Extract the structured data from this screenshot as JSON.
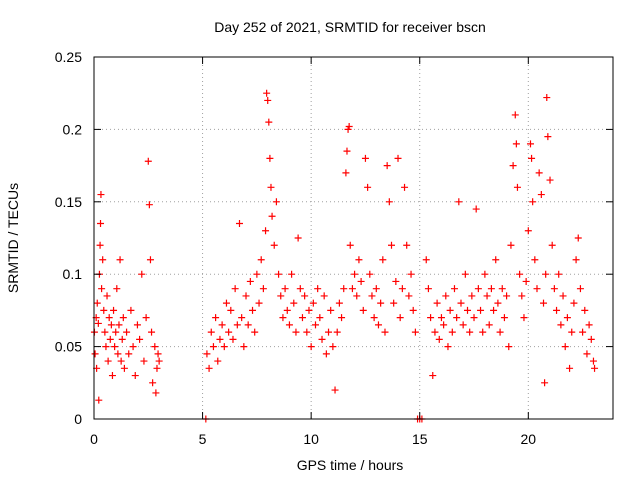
{
  "chart_data": {
    "type": "scatter",
    "title": "Day 252 of 2021, SRMTID for receiver bscn",
    "xlabel": "GPS time / hours",
    "ylabel": "SRMTID / TECUs",
    "xlim": [
      0,
      23.9
    ],
    "ylim": [
      0,
      0.25
    ],
    "xticks": [
      0,
      5,
      10,
      15,
      20
    ],
    "xtick_labels": [
      "0",
      "5",
      "10",
      "15",
      "20"
    ],
    "yticks": [
      0,
      0.05,
      0.1,
      0.15,
      0.2,
      0.25
    ],
    "ytick_labels": [
      "0",
      "0.05",
      "0.1",
      "0.15",
      "0.2",
      "0.25"
    ],
    "grid": true,
    "marker": "+",
    "color": "#ff0000",
    "series": [
      {
        "name": "SRMTID",
        "points": [
          [
            0.02,
            0.06
          ],
          [
            0.05,
            0.045
          ],
          [
            0.1,
            0.07
          ],
          [
            0.12,
            0.035
          ],
          [
            0.15,
            0.08
          ],
          [
            0.2,
            0.066
          ],
          [
            0.22,
            0.013
          ],
          [
            0.25,
            0.1
          ],
          [
            0.28,
            0.12
          ],
          [
            0.3,
            0.135
          ],
          [
            0.32,
            0.155
          ],
          [
            0.35,
            0.09
          ],
          [
            0.4,
            0.11
          ],
          [
            0.45,
            0.075
          ],
          [
            0.5,
            0.06
          ],
          [
            0.55,
            0.05
          ],
          [
            0.6,
            0.085
          ],
          [
            0.65,
            0.04
          ],
          [
            0.7,
            0.07
          ],
          [
            0.75,
            0.055
          ],
          [
            0.8,
            0.065
          ],
          [
            0.85,
            0.03
          ],
          [
            0.9,
            0.075
          ],
          [
            0.95,
            0.05
          ],
          [
            1.0,
            0.06
          ],
          [
            1.05,
            0.09
          ],
          [
            1.1,
            0.045
          ],
          [
            1.15,
            0.065
          ],
          [
            1.2,
            0.11
          ],
          [
            1.25,
            0.04
          ],
          [
            1.3,
            0.055
          ],
          [
            1.35,
            0.07
          ],
          [
            1.4,
            0.035
          ],
          [
            1.5,
            0.06
          ],
          [
            1.6,
            0.045
          ],
          [
            1.7,
            0.075
          ],
          [
            1.8,
            0.05
          ],
          [
            1.9,
            0.03
          ],
          [
            2.0,
            0.065
          ],
          [
            2.1,
            0.055
          ],
          [
            2.2,
            0.1
          ],
          [
            2.3,
            0.04
          ],
          [
            2.4,
            0.07
          ],
          [
            2.5,
            0.178
          ],
          [
            2.55,
            0.148
          ],
          [
            2.6,
            0.11
          ],
          [
            2.65,
            0.06
          ],
          [
            2.7,
            0.025
          ],
          [
            2.8,
            0.05
          ],
          [
            2.85,
            0.018
          ],
          [
            2.9,
            0.035
          ],
          [
            2.95,
            0.045
          ],
          [
            3.0,
            0.04
          ],
          [
            5.15,
            0.0
          ],
          [
            5.2,
            0.045
          ],
          [
            5.3,
            0.035
          ],
          [
            5.4,
            0.06
          ],
          [
            5.5,
            0.05
          ],
          [
            5.6,
            0.07
          ],
          [
            5.7,
            0.04
          ],
          [
            5.8,
            0.055
          ],
          [
            5.9,
            0.065
          ],
          [
            6.0,
            0.05
          ],
          [
            6.1,
            0.08
          ],
          [
            6.2,
            0.06
          ],
          [
            6.3,
            0.075
          ],
          [
            6.4,
            0.055
          ],
          [
            6.5,
            0.09
          ],
          [
            6.6,
            0.065
          ],
          [
            6.7,
            0.135
          ],
          [
            6.8,
            0.07
          ],
          [
            6.9,
            0.05
          ],
          [
            7.0,
            0.085
          ],
          [
            7.1,
            0.065
          ],
          [
            7.2,
            0.095
          ],
          [
            7.3,
            0.075
          ],
          [
            7.4,
            0.06
          ],
          [
            7.5,
            0.1
          ],
          [
            7.6,
            0.08
          ],
          [
            7.7,
            0.11
          ],
          [
            7.8,
            0.09
          ],
          [
            7.9,
            0.13
          ],
          [
            7.95,
            0.225
          ],
          [
            8.0,
            0.22
          ],
          [
            8.05,
            0.205
          ],
          [
            8.1,
            0.18
          ],
          [
            8.15,
            0.16
          ],
          [
            8.2,
            0.14
          ],
          [
            8.3,
            0.12
          ],
          [
            8.4,
            0.15
          ],
          [
            8.5,
            0.1
          ],
          [
            8.6,
            0.085
          ],
          [
            8.7,
            0.07
          ],
          [
            8.8,
            0.09
          ],
          [
            8.9,
            0.075
          ],
          [
            9.0,
            0.065
          ],
          [
            9.1,
            0.1
          ],
          [
            9.2,
            0.08
          ],
          [
            9.3,
            0.06
          ],
          [
            9.4,
            0.125
          ],
          [
            9.5,
            0.09
          ],
          [
            9.6,
            0.07
          ],
          [
            9.7,
            0.085
          ],
          [
            9.8,
            0.06
          ],
          [
            9.9,
            0.075
          ],
          [
            10.0,
            0.05
          ],
          [
            10.1,
            0.08
          ],
          [
            10.2,
            0.065
          ],
          [
            10.3,
            0.09
          ],
          [
            10.4,
            0.07
          ],
          [
            10.5,
            0.055
          ],
          [
            10.6,
            0.085
          ],
          [
            10.7,
            0.045
          ],
          [
            10.8,
            0.06
          ],
          [
            10.9,
            0.075
          ],
          [
            11.0,
            0.05
          ],
          [
            11.1,
            0.02
          ],
          [
            11.2,
            0.06
          ],
          [
            11.3,
            0.08
          ],
          [
            11.4,
            0.07
          ],
          [
            11.5,
            0.09
          ],
          [
            11.6,
            0.17
          ],
          [
            11.65,
            0.185
          ],
          [
            11.7,
            0.2
          ],
          [
            11.75,
            0.202
          ],
          [
            11.8,
            0.12
          ],
          [
            11.9,
            0.09
          ],
          [
            12.0,
            0.1
          ],
          [
            12.1,
            0.085
          ],
          [
            12.2,
            0.11
          ],
          [
            12.3,
            0.095
          ],
          [
            12.4,
            0.075
          ],
          [
            12.5,
            0.18
          ],
          [
            12.6,
            0.16
          ],
          [
            12.7,
            0.1
          ],
          [
            12.8,
            0.085
          ],
          [
            12.9,
            0.07
          ],
          [
            13.0,
            0.09
          ],
          [
            13.1,
            0.065
          ],
          [
            13.2,
            0.08
          ],
          [
            13.3,
            0.11
          ],
          [
            13.4,
            0.06
          ],
          [
            13.5,
            0.175
          ],
          [
            13.6,
            0.15
          ],
          [
            13.7,
            0.12
          ],
          [
            13.8,
            0.08
          ],
          [
            13.9,
            0.095
          ],
          [
            14.0,
            0.18
          ],
          [
            14.1,
            0.07
          ],
          [
            14.2,
            0.09
          ],
          [
            14.3,
            0.16
          ],
          [
            14.4,
            0.12
          ],
          [
            14.5,
            0.085
          ],
          [
            14.6,
            0.1
          ],
          [
            14.7,
            0.075
          ],
          [
            14.8,
            0.06
          ],
          [
            14.9,
            0.0
          ],
          [
            15.0,
            0.0
          ],
          [
            15.1,
            0.0
          ],
          [
            15.3,
            0.11
          ],
          [
            15.4,
            0.09
          ],
          [
            15.5,
            0.07
          ],
          [
            15.6,
            0.03
          ],
          [
            15.7,
            0.06
          ],
          [
            15.8,
            0.08
          ],
          [
            15.9,
            0.055
          ],
          [
            16.0,
            0.07
          ],
          [
            16.1,
            0.065
          ],
          [
            16.2,
            0.085
          ],
          [
            16.3,
            0.05
          ],
          [
            16.4,
            0.075
          ],
          [
            16.5,
            0.06
          ],
          [
            16.6,
            0.09
          ],
          [
            16.7,
            0.07
          ],
          [
            16.8,
            0.15
          ],
          [
            16.9,
            0.08
          ],
          [
            17.0,
            0.065
          ],
          [
            17.1,
            0.1
          ],
          [
            17.2,
            0.075
          ],
          [
            17.3,
            0.06
          ],
          [
            17.4,
            0.085
          ],
          [
            17.5,
            0.07
          ],
          [
            17.6,
            0.145
          ],
          [
            17.7,
            0.09
          ],
          [
            17.8,
            0.075
          ],
          [
            17.9,
            0.06
          ],
          [
            18.0,
            0.1
          ],
          [
            18.1,
            0.085
          ],
          [
            18.2,
            0.065
          ],
          [
            18.3,
            0.09
          ],
          [
            18.4,
            0.075
          ],
          [
            18.5,
            0.11
          ],
          [
            18.6,
            0.08
          ],
          [
            18.7,
            0.06
          ],
          [
            18.8,
            0.09
          ],
          [
            18.9,
            0.07
          ],
          [
            19.0,
            0.085
          ],
          [
            19.1,
            0.05
          ],
          [
            19.2,
            0.12
          ],
          [
            19.3,
            0.175
          ],
          [
            19.4,
            0.21
          ],
          [
            19.45,
            0.19
          ],
          [
            19.5,
            0.16
          ],
          [
            19.6,
            0.1
          ],
          [
            19.7,
            0.085
          ],
          [
            19.8,
            0.07
          ],
          [
            19.9,
            0.095
          ],
          [
            20.0,
            0.13
          ],
          [
            20.1,
            0.19
          ],
          [
            20.15,
            0.18
          ],
          [
            20.2,
            0.15
          ],
          [
            20.3,
            0.11
          ],
          [
            20.4,
            0.09
          ],
          [
            20.5,
            0.17
          ],
          [
            20.6,
            0.155
          ],
          [
            20.7,
            0.08
          ],
          [
            20.75,
            0.025
          ],
          [
            20.8,
            0.1
          ],
          [
            20.85,
            0.222
          ],
          [
            20.9,
            0.195
          ],
          [
            21.0,
            0.165
          ],
          [
            21.1,
            0.12
          ],
          [
            21.2,
            0.09
          ],
          [
            21.3,
            0.075
          ],
          [
            21.4,
            0.1
          ],
          [
            21.5,
            0.065
          ],
          [
            21.6,
            0.085
          ],
          [
            21.7,
            0.05
          ],
          [
            21.8,
            0.07
          ],
          [
            21.9,
            0.035
          ],
          [
            22.0,
            0.06
          ],
          [
            22.1,
            0.08
          ],
          [
            22.2,
            0.11
          ],
          [
            22.3,
            0.125
          ],
          [
            22.4,
            0.09
          ],
          [
            22.5,
            0.06
          ],
          [
            22.6,
            0.075
          ],
          [
            22.7,
            0.045
          ],
          [
            22.8,
            0.065
          ],
          [
            22.9,
            0.055
          ],
          [
            23.0,
            0.04
          ],
          [
            23.05,
            0.035
          ]
        ]
      }
    ]
  }
}
